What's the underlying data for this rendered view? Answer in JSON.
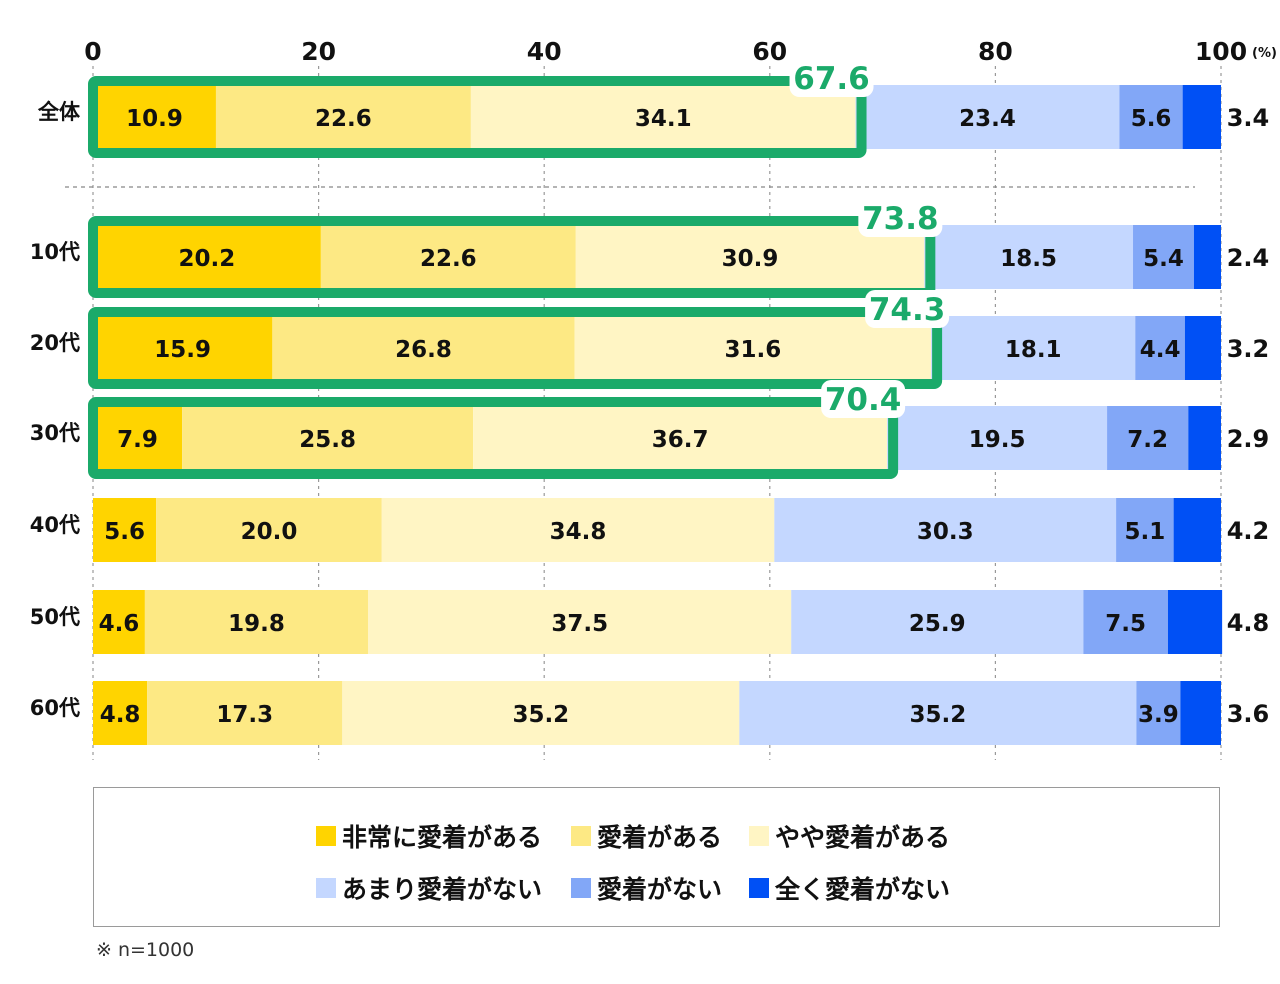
{
  "chart_data": {
    "type": "bar",
    "orientation": "horizontal-stacked-100",
    "axis_unit": "(%)",
    "xlim": [
      0,
      100
    ],
    "xticks": [
      0,
      20,
      40,
      60,
      80,
      100
    ],
    "grid": true,
    "legend_placement": "bottom",
    "categories": [
      "全体",
      "10代",
      "20代",
      "30代",
      "40代",
      "50代",
      "60代"
    ],
    "series": [
      {
        "name": "非常に愛着がある",
        "color": "#FFD400",
        "values": [
          10.9,
          20.2,
          15.9,
          7.9,
          5.6,
          4.6,
          4.8
        ]
      },
      {
        "name": "愛着がある",
        "color": "#FDE984",
        "values": [
          22.6,
          22.6,
          26.8,
          25.8,
          20.0,
          19.8,
          17.3
        ]
      },
      {
        "name": "やや愛着がある",
        "color": "#FFF5C4",
        "values": [
          34.1,
          30.9,
          31.6,
          36.7,
          34.8,
          37.5,
          35.2
        ]
      },
      {
        "name": "あまり愛着がない",
        "color": "#C4D7FF",
        "values": [
          23.4,
          18.5,
          18.1,
          19.5,
          30.3,
          25.9,
          35.2
        ]
      },
      {
        "name": "愛着がない",
        "color": "#82A7F7",
        "values": [
          5.6,
          5.4,
          4.4,
          7.2,
          5.1,
          7.5,
          3.9
        ]
      },
      {
        "name": "全く愛着がない",
        "color": "#0050F5",
        "values": [
          3.4,
          2.4,
          3.2,
          2.9,
          4.2,
          4.8,
          3.6
        ]
      }
    ],
    "highlight_color": "#1BAA6A",
    "highlights": [
      {
        "category": "全体",
        "total": "67.6"
      },
      {
        "category": "10代",
        "total": "73.8"
      },
      {
        "category": "20代",
        "total": "74.3"
      },
      {
        "category": "30代",
        "total": "70.4"
      }
    ]
  },
  "note": "※ n=1000"
}
